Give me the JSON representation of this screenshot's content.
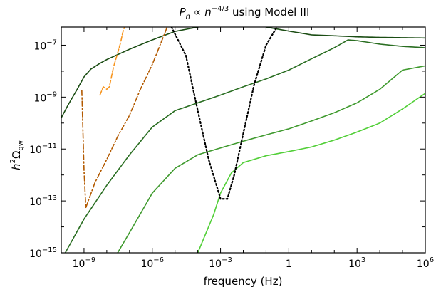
{
  "chart_data": {
    "type": "line",
    "title_math": {
      "base": "P",
      "sub": "n",
      "rel": " ∝ ",
      "var": "n",
      "exp": "−4/3"
    },
    "title_text": " using Model III",
    "xlabel": "frequency (Hz)",
    "ylabel_math": {
      "sq": "2",
      "omega": "Ω",
      "sub": "gw"
    },
    "x_scale": "log",
    "y_scale": "log",
    "xlim": [
      1e-10,
      1000000.0
    ],
    "ylim": [
      1e-15,
      5e-07
    ],
    "x_ticks": [
      {
        "value": 1e-09,
        "base": "10",
        "exp": "−9"
      },
      {
        "value": 1e-06,
        "base": "10",
        "exp": "−6"
      },
      {
        "value": 0.001,
        "base": "10",
        "exp": "−3"
      },
      {
        "value": 1,
        "base": "1",
        "exp": ""
      },
      {
        "value": 1000.0,
        "base": "10",
        "exp": "3"
      },
      {
        "value": 1000000.0,
        "base": "10",
        "exp": "6"
      }
    ],
    "y_ticks": [
      {
        "value": 1e-15,
        "base": "10",
        "exp": "−15"
      },
      {
        "value": 1e-13,
        "base": "10",
        "exp": "−13"
      },
      {
        "value": 1e-11,
        "base": "10",
        "exp": "−11"
      },
      {
        "value": 1e-09,
        "base": "10",
        "exp": "−9"
      },
      {
        "value": 1e-07,
        "base": "10",
        "exp": "−7"
      }
    ],
    "grid": false,
    "legend": "none",
    "series": [
      {
        "color": "#1b4d14",
        "style": "solid",
        "x": [
          1e-10,
          2e-10,
          5e-10,
          1e-09,
          2e-09,
          5e-09,
          1e-08,
          1e-07,
          1e-06,
          1e-05,
          0.0001,
          0.001
        ],
        "y": [
          1.6e-10,
          5e-10,
          2e-09,
          6e-09,
          1.2e-08,
          2e-08,
          2.8e-08,
          7e-08,
          1.6e-07,
          3.4e-07,
          5e-07,
          6e-07
        ]
      },
      {
        "color": "#1b4d14",
        "style": "solid",
        "x": [
          0.1,
          1,
          10,
          100,
          1000,
          10000.0,
          100000.0,
          1000000.0
        ],
        "y": [
          5e-07,
          3.5e-07,
          2.5e-07,
          2.3e-07,
          2.1e-07,
          2e-07,
          1.95e-07,
          1.9e-07
        ]
      },
      {
        "color": "#2a6e22",
        "style": "solid",
        "x": [
          1.5e-10,
          1e-09,
          1e-08,
          1e-07,
          1e-06,
          1e-05,
          0.0001,
          0.001,
          0.01,
          0.1,
          1,
          10,
          100,
          400,
          1000,
          10000.0,
          100000.0,
          1000000.0
        ],
        "y": [
          1e-15,
          2e-14,
          4e-13,
          6e-12,
          7e-11,
          3e-10,
          6e-10,
          1.2e-09,
          2.5e-09,
          5e-09,
          1.1e-08,
          3e-08,
          8e-08,
          1.6e-07,
          1.5e-07,
          1.1e-07,
          9e-08,
          8e-08
        ]
      },
      {
        "color": "#3f9a2e",
        "style": "solid",
        "x": [
          3e-08,
          1e-07,
          1e-06,
          1e-05,
          0.0001,
          0.001,
          0.01,
          0.1,
          1,
          10,
          100,
          1000,
          10000.0,
          100000.0,
          1000000.0
        ],
        "y": [
          1e-15,
          6e-15,
          2e-13,
          1.8e-12,
          6e-12,
          1.1e-11,
          2e-11,
          3.5e-11,
          6e-11,
          1.2e-10,
          2.5e-10,
          6e-10,
          2e-09,
          1.1e-08,
          1.6e-08
        ]
      },
      {
        "color": "#52cf38",
        "style": "solid",
        "x": [
          0.0001,
          0.0005,
          0.001,
          0.003,
          0.01,
          0.1,
          1,
          10,
          100,
          1000,
          10000.0,
          100000.0,
          1000000.0
        ],
        "y": [
          1e-15,
          3e-14,
          2e-13,
          1.2e-12,
          3e-12,
          5.5e-12,
          8e-12,
          1.2e-11,
          2.2e-11,
          4.5e-11,
          1e-10,
          3.5e-10,
          1.4e-09
        ]
      },
      {
        "color": "#000000",
        "style": "dotted",
        "x": [
          7e-06,
          3e-05,
          0.0001,
          0.0003,
          0.001,
          0.002,
          0.004,
          0.01,
          0.03,
          0.1,
          0.3
        ],
        "y": [
          5e-07,
          4e-08,
          3e-10,
          4e-12,
          1.2e-13,
          1.2e-13,
          1e-12,
          4e-11,
          3e-09,
          1e-07,
          5e-07
        ]
      },
      {
        "color": "#b35a00",
        "style": "dashdot",
        "x": [
          8e-10,
          1e-09,
          1.2e-09,
          3e-09,
          1e-08,
          3e-08,
          1e-07,
          3e-07,
          1e-06,
          3e-06,
          4.5e-06
        ],
        "y": [
          1.8e-09,
          1.5e-12,
          5.5e-14,
          5e-13,
          4e-12,
          3e-11,
          2e-10,
          2e-09,
          1.8e-08,
          2e-07,
          5e-07
        ]
      },
      {
        "color": "#f7941d",
        "style": "dashed",
        "x": [
          5e-09,
          7e-09,
          1e-08,
          1.3e-08,
          2e-08,
          3e-08,
          4e-08,
          5e-08,
          6e-08
        ],
        "y": [
          1.2e-09,
          2.5e-09,
          2e-09,
          2.5e-09,
          1.5e-08,
          5e-08,
          1.2e-07,
          3e-07,
          5e-07
        ]
      }
    ]
  }
}
